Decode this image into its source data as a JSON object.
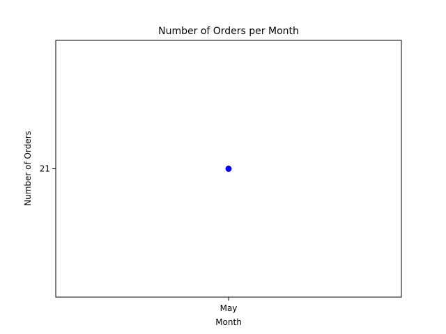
{
  "chart_data": {
    "type": "scatter",
    "title": "Number of Orders per Month",
    "xlabel": "Month",
    "ylabel": "Number of Orders",
    "categories": [
      "May"
    ],
    "series": [
      {
        "values": [
          21
        ],
        "color": "#0000ff"
      }
    ],
    "yticks": [
      21
    ],
    "ytick_labels": [
      "21"
    ],
    "ylim": [
      20.94,
      21.06
    ],
    "grid": false
  }
}
